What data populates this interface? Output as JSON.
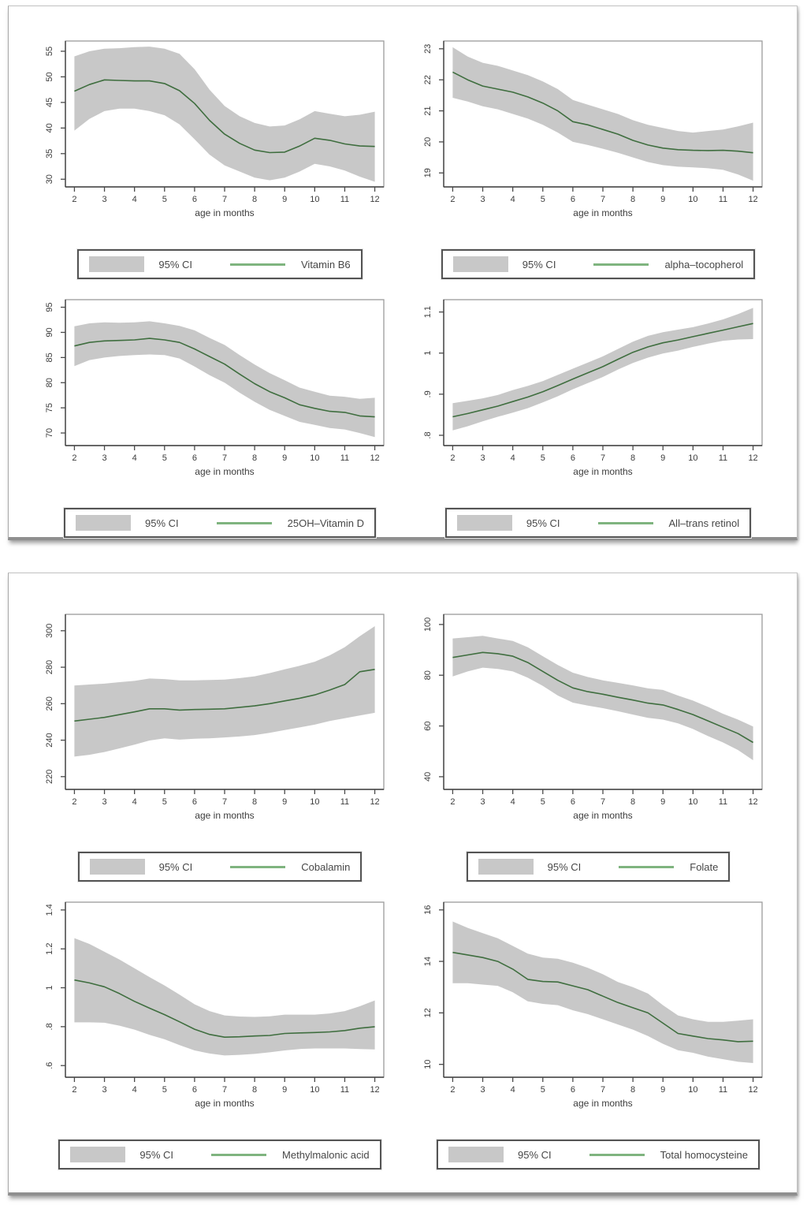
{
  "ci_label": "95% CI",
  "xlabel": "age in months",
  "colors": {
    "band": "#c8c8c8",
    "line": "#3f6e3f",
    "legend_line": "#7fb47f",
    "plot_border": "#9c9c9c",
    "axis": "#404040",
    "tick": "#4a4a4a",
    "tick_label": "#3c3c3c",
    "legend_border": "#545454",
    "panel_border": "#c2c2c2"
  },
  "panels": [
    {
      "name": "figure-panel-1",
      "chart_indexes": [
        0,
        1,
        2,
        3
      ]
    },
    {
      "name": "figure-panel-2",
      "chart_indexes": [
        4,
        5,
        6,
        7
      ]
    }
  ],
  "chart_data": [
    {
      "type": "line",
      "legend_label": "Vitamin B6",
      "title": "",
      "xlabel": "age in months",
      "ylabel": "",
      "legend": [
        "95% CI",
        "Vitamin B6"
      ],
      "x": [
        2,
        2.5,
        3,
        3.5,
        4,
        4.5,
        5,
        5.5,
        6,
        6.5,
        7,
        7.5,
        8,
        8.5,
        9,
        9.5,
        10,
        10.5,
        11,
        11.5,
        12
      ],
      "y": [
        47.2,
        48.5,
        49.4,
        49.3,
        49.2,
        49.2,
        48.7,
        47.3,
        44.8,
        41.5,
        38.8,
        37.0,
        35.7,
        35.2,
        35.3,
        36.5,
        38.0,
        37.6,
        36.9,
        36.5,
        36.4
      ],
      "upper": [
        54.0,
        55.0,
        55.5,
        55.6,
        55.8,
        55.9,
        55.5,
        54.5,
        51.5,
        47.5,
        44.3,
        42.3,
        41.0,
        40.3,
        40.5,
        41.7,
        43.3,
        42.8,
        42.3,
        42.6,
        43.2
      ],
      "lower": [
        39.5,
        41.8,
        43.3,
        43.8,
        43.8,
        43.3,
        42.5,
        40.7,
        37.8,
        34.8,
        32.7,
        31.5,
        30.3,
        29.8,
        30.3,
        31.5,
        33.0,
        32.5,
        31.7,
        30.5,
        29.5
      ],
      "xlim": [
        1.7,
        12.3
      ],
      "ylim": [
        28.5,
        57
      ],
      "xticks": [
        2,
        3,
        4,
        5,
        6,
        7,
        8,
        9,
        10,
        11,
        12
      ],
      "xtick_labels": [
        "2",
        "3",
        "4",
        "5",
        "6",
        "7",
        "8",
        "9",
        "10",
        "11",
        "12"
      ],
      "yticks": [
        30,
        35,
        40,
        45,
        50,
        55
      ],
      "ytick_labels": [
        "30",
        "35",
        "40",
        "45",
        "50",
        "55"
      ]
    },
    {
      "type": "line",
      "legend_label": "alpha–tocopherol",
      "title": "",
      "xlabel": "age in months",
      "ylabel": "",
      "legend": [
        "95% CI",
        "alpha–tocopherol"
      ],
      "x": [
        2,
        2.5,
        3,
        3.5,
        4,
        4.5,
        5,
        5.5,
        6,
        6.5,
        7,
        7.5,
        8,
        8.5,
        9,
        9.5,
        10,
        10.5,
        11,
        11.5,
        12
      ],
      "y": [
        22.25,
        22.0,
        21.8,
        21.7,
        21.6,
        21.45,
        21.25,
        21.0,
        20.65,
        20.55,
        20.4,
        20.25,
        20.05,
        19.9,
        19.8,
        19.75,
        19.73,
        19.72,
        19.73,
        19.7,
        19.65
      ],
      "upper": [
        23.05,
        22.75,
        22.55,
        22.45,
        22.3,
        22.15,
        21.95,
        21.7,
        21.35,
        21.2,
        21.05,
        20.9,
        20.7,
        20.55,
        20.45,
        20.35,
        20.3,
        20.35,
        20.4,
        20.5,
        20.62
      ],
      "lower": [
        21.42,
        21.3,
        21.15,
        21.05,
        20.9,
        20.75,
        20.55,
        20.3,
        20.0,
        19.9,
        19.78,
        19.65,
        19.5,
        19.35,
        19.25,
        19.2,
        19.18,
        19.15,
        19.1,
        18.95,
        18.75
      ],
      "xlim": [
        1.7,
        12.3
      ],
      "ylim": [
        18.55,
        23.25
      ],
      "xticks": [
        2,
        3,
        4,
        5,
        6,
        7,
        8,
        9,
        10,
        11,
        12
      ],
      "xtick_labels": [
        "2",
        "3",
        "4",
        "5",
        "6",
        "7",
        "8",
        "9",
        "10",
        "11",
        "12"
      ],
      "yticks": [
        19,
        20,
        21,
        22,
        23
      ],
      "ytick_labels": [
        "19",
        "20",
        "21",
        "22",
        "23"
      ]
    },
    {
      "type": "line",
      "legend_label": "25OH–Vitamin D",
      "title": "",
      "xlabel": "age in months",
      "ylabel": "",
      "legend": [
        "95% CI",
        "25OH–Vitamin D"
      ],
      "x": [
        2,
        2.5,
        3,
        3.5,
        4,
        4.5,
        5,
        5.5,
        6,
        6.5,
        7,
        7.5,
        8,
        8.5,
        9,
        9.5,
        10,
        10.5,
        11,
        11.5,
        12
      ],
      "y": [
        87.3,
        88.0,
        88.3,
        88.4,
        88.5,
        88.8,
        88.5,
        88.0,
        86.7,
        85.2,
        83.7,
        81.7,
        79.8,
        78.2,
        77.0,
        75.6,
        74.9,
        74.3,
        74.1,
        73.4,
        73.2
      ],
      "upper": [
        91.2,
        91.8,
        92.0,
        91.9,
        92.0,
        92.2,
        91.8,
        91.3,
        90.4,
        88.9,
        87.5,
        85.5,
        83.6,
        81.9,
        80.5,
        79.0,
        78.2,
        77.4,
        77.2,
        76.8,
        77.0
      ],
      "lower": [
        83.3,
        84.5,
        85.0,
        85.3,
        85.5,
        85.6,
        85.5,
        84.8,
        83.2,
        81.5,
        80.0,
        78.0,
        76.2,
        74.6,
        73.4,
        72.2,
        71.6,
        71.0,
        70.7,
        70.0,
        69.2
      ],
      "xlim": [
        1.7,
        12.3
      ],
      "ylim": [
        67.5,
        96.5
      ],
      "xticks": [
        2,
        3,
        4,
        5,
        6,
        7,
        8,
        9,
        10,
        11,
        12
      ],
      "xtick_labels": [
        "2",
        "3",
        "4",
        "5",
        "6",
        "7",
        "8",
        "9",
        "10",
        "11",
        "12"
      ],
      "yticks": [
        70,
        75,
        80,
        85,
        90,
        95
      ],
      "ytick_labels": [
        "70",
        "75",
        "80",
        "85",
        "90",
        "95"
      ]
    },
    {
      "type": "line",
      "legend_label": "All–trans retinol",
      "title": "",
      "xlabel": "age in months",
      "ylabel": "",
      "legend": [
        "95% CI",
        "All–trans retinol"
      ],
      "x": [
        2,
        2.5,
        3,
        3.5,
        4,
        4.5,
        5,
        5.5,
        6,
        6.5,
        7,
        7.5,
        8,
        8.5,
        9,
        9.5,
        10,
        10.5,
        11,
        11.5,
        12
      ],
      "y": [
        0.845,
        0.853,
        0.862,
        0.871,
        0.882,
        0.893,
        0.906,
        0.921,
        0.937,
        0.952,
        0.967,
        0.985,
        1.002,
        1.015,
        1.025,
        1.032,
        1.04,
        1.048,
        1.056,
        1.064,
        1.072
      ],
      "upper": [
        0.878,
        0.884,
        0.89,
        0.898,
        0.91,
        0.92,
        0.932,
        0.947,
        0.962,
        0.977,
        0.992,
        1.01,
        1.028,
        1.042,
        1.051,
        1.057,
        1.063,
        1.072,
        1.082,
        1.095,
        1.11
      ],
      "lower": [
        0.812,
        0.822,
        0.834,
        0.845,
        0.855,
        0.866,
        0.88,
        0.895,
        0.912,
        0.927,
        0.942,
        0.96,
        0.976,
        0.989,
        0.999,
        1.006,
        1.015,
        1.023,
        1.03,
        1.033,
        1.034
      ],
      "xlim": [
        1.7,
        12.3
      ],
      "ylim": [
        0.775,
        1.13
      ],
      "xticks": [
        2,
        3,
        4,
        5,
        6,
        7,
        8,
        9,
        10,
        11,
        12
      ],
      "xtick_labels": [
        "2",
        "3",
        "4",
        "5",
        "6",
        "7",
        "8",
        "9",
        "10",
        "11",
        "12"
      ],
      "yticks": [
        0.8,
        0.9,
        1,
        1.1
      ],
      "ytick_labels": [
        ".8",
        ".9",
        "1",
        "1.1"
      ]
    },
    {
      "type": "line",
      "legend_label": "Cobalamin",
      "title": "",
      "xlabel": "age in months",
      "ylabel": "",
      "legend": [
        "95% CI",
        "Cobalamin"
      ],
      "x": [
        2,
        2.5,
        3,
        3.5,
        4,
        4.5,
        5,
        5.5,
        6,
        6.5,
        7,
        7.5,
        8,
        8.5,
        9,
        9.5,
        10,
        10.5,
        11,
        11.5,
        12
      ],
      "y": [
        250.5,
        251.5,
        252.5,
        254,
        255.5,
        257.2,
        257.2,
        256.5,
        256.8,
        257,
        257.2,
        258,
        258.8,
        260,
        261.5,
        263,
        264.8,
        267.5,
        270.5,
        277.5,
        278.8
      ],
      "upper": [
        270,
        270.5,
        271,
        271.8,
        272.5,
        273.8,
        273.5,
        272.8,
        272.8,
        273,
        273.2,
        274,
        275,
        276.8,
        278.8,
        280.8,
        283,
        286.5,
        291,
        297,
        302.5
      ],
      "lower": [
        231,
        232,
        233.5,
        235.5,
        237.5,
        239.8,
        241,
        240.3,
        240.8,
        241,
        241.5,
        242,
        242.8,
        244,
        245.5,
        247,
        248.5,
        250.5,
        252,
        253.5,
        255
      ],
      "xlim": [
        1.7,
        12.3
      ],
      "ylim": [
        213,
        309
      ],
      "xticks": [
        2,
        3,
        4,
        5,
        6,
        7,
        8,
        9,
        10,
        11,
        12
      ],
      "xtick_labels": [
        "2",
        "3",
        "4",
        "5",
        "6",
        "7",
        "8",
        "9",
        "10",
        "11",
        "12"
      ],
      "yticks": [
        220,
        240,
        260,
        280,
        300
      ],
      "ytick_labels": [
        "220",
        "240",
        "260",
        "280",
        "300"
      ]
    },
    {
      "type": "line",
      "legend_label": "Folate",
      "title": "",
      "xlabel": "age in months",
      "ylabel": "",
      "legend": [
        "95% CI",
        "Folate"
      ],
      "x": [
        2,
        2.5,
        3,
        3.5,
        4,
        4.5,
        5,
        5.5,
        6,
        6.5,
        7,
        7.5,
        8,
        8.5,
        9,
        9.5,
        10,
        10.5,
        11,
        11.5,
        12
      ],
      "y": [
        87,
        88,
        89,
        88.5,
        87.5,
        85,
        81.5,
        78,
        75,
        73.5,
        72.5,
        71.3,
        70.2,
        69,
        68.3,
        66.5,
        64.5,
        62,
        59.5,
        57,
        53.5
      ],
      "upper": [
        94.5,
        95,
        95.5,
        94.5,
        93.5,
        91,
        87.5,
        84,
        81,
        79.3,
        78,
        77,
        76,
        74.8,
        74.2,
        72,
        70,
        67.5,
        64.8,
        62.5,
        59.8
      ],
      "lower": [
        79.5,
        81.5,
        83,
        82.5,
        81.5,
        79,
        75.8,
        72,
        69.2,
        68,
        67,
        65.8,
        64.5,
        63.2,
        62.5,
        61,
        58.8,
        56,
        53.5,
        50.5,
        46.5
      ],
      "xlim": [
        1.7,
        12.3
      ],
      "ylim": [
        35,
        104
      ],
      "xticks": [
        2,
        3,
        4,
        5,
        6,
        7,
        8,
        9,
        10,
        11,
        12
      ],
      "xtick_labels": [
        "2",
        "3",
        "4",
        "5",
        "6",
        "7",
        "8",
        "9",
        "10",
        "11",
        "12"
      ],
      "yticks": [
        40,
        60,
        80,
        100
      ],
      "ytick_labels": [
        "40",
        "60",
        "80",
        "100"
      ]
    },
    {
      "type": "line",
      "legend_label": "Methylmalonic acid",
      "title": "",
      "xlabel": "age in months",
      "ylabel": "",
      "legend": [
        "95% CI",
        "Methylmalonic acid"
      ],
      "x": [
        2,
        2.5,
        3,
        3.5,
        4,
        4.5,
        5,
        5.5,
        6,
        6.5,
        7,
        7.5,
        8,
        8.5,
        9,
        9.5,
        10,
        10.5,
        11,
        11.5,
        12
      ],
      "y": [
        1.04,
        1.025,
        1.005,
        0.97,
        0.93,
        0.895,
        0.862,
        0.825,
        0.787,
        0.76,
        0.746,
        0.748,
        0.752,
        0.755,
        0.765,
        0.768,
        0.77,
        0.773,
        0.78,
        0.792,
        0.8
      ],
      "upper": [
        1.255,
        1.225,
        1.185,
        1.145,
        1.1,
        1.055,
        1.012,
        0.965,
        0.915,
        0.88,
        0.858,
        0.852,
        0.85,
        0.853,
        0.862,
        0.862,
        0.862,
        0.868,
        0.88,
        0.905,
        0.935
      ],
      "lower": [
        0.822,
        0.822,
        0.82,
        0.805,
        0.785,
        0.758,
        0.735,
        0.705,
        0.678,
        0.662,
        0.652,
        0.655,
        0.66,
        0.668,
        0.678,
        0.685,
        0.688,
        0.688,
        0.688,
        0.685,
        0.683
      ],
      "xlim": [
        1.7,
        12.3
      ],
      "ylim": [
        0.54,
        1.44
      ],
      "xticks": [
        2,
        3,
        4,
        5,
        6,
        7,
        8,
        9,
        10,
        11,
        12
      ],
      "xtick_labels": [
        "2",
        "3",
        "4",
        "5",
        "6",
        "7",
        "8",
        "9",
        "10",
        "11",
        "12"
      ],
      "yticks": [
        0.6,
        0.8,
        1,
        1.2,
        1.4
      ],
      "ytick_labels": [
        ".6",
        ".8",
        "1",
        "1.2",
        "1.4"
      ]
    },
    {
      "type": "line",
      "legend_label": "Total homocysteine",
      "title": "",
      "xlabel": "age in months",
      "ylabel": "",
      "legend": [
        "95% CI",
        "Total homocysteine"
      ],
      "x": [
        2,
        2.5,
        3,
        3.5,
        4,
        4.5,
        5,
        5.5,
        6,
        6.5,
        7,
        7.5,
        8,
        8.5,
        9,
        9.5,
        10,
        10.5,
        11,
        11.5,
        12
      ],
      "y": [
        14.35,
        14.25,
        14.15,
        14.0,
        13.7,
        13.3,
        13.22,
        13.2,
        13.05,
        12.9,
        12.65,
        12.4,
        12.2,
        12.0,
        11.6,
        11.2,
        11.1,
        11.0,
        10.95,
        10.88,
        10.9
      ],
      "upper": [
        15.55,
        15.3,
        15.1,
        14.9,
        14.6,
        14.3,
        14.15,
        14.1,
        13.95,
        13.75,
        13.5,
        13.2,
        13.0,
        12.75,
        12.3,
        11.9,
        11.75,
        11.65,
        11.65,
        11.7,
        11.75
      ],
      "lower": [
        13.15,
        13.15,
        13.1,
        13.05,
        12.8,
        12.45,
        12.35,
        12.3,
        12.1,
        11.95,
        11.75,
        11.55,
        11.35,
        11.1,
        10.8,
        10.55,
        10.45,
        10.3,
        10.2,
        10.1,
        10.05
      ],
      "xlim": [
        1.7,
        12.3
      ],
      "ylim": [
        9.5,
        16.3
      ],
      "xticks": [
        2,
        3,
        4,
        5,
        6,
        7,
        8,
        9,
        10,
        11,
        12
      ],
      "xtick_labels": [
        "2",
        "3",
        "4",
        "5",
        "6",
        "7",
        "8",
        "9",
        "10",
        "11",
        "12"
      ],
      "yticks": [
        10,
        12,
        14,
        16
      ],
      "ytick_labels": [
        "10",
        "12",
        "14",
        "16"
      ]
    }
  ]
}
